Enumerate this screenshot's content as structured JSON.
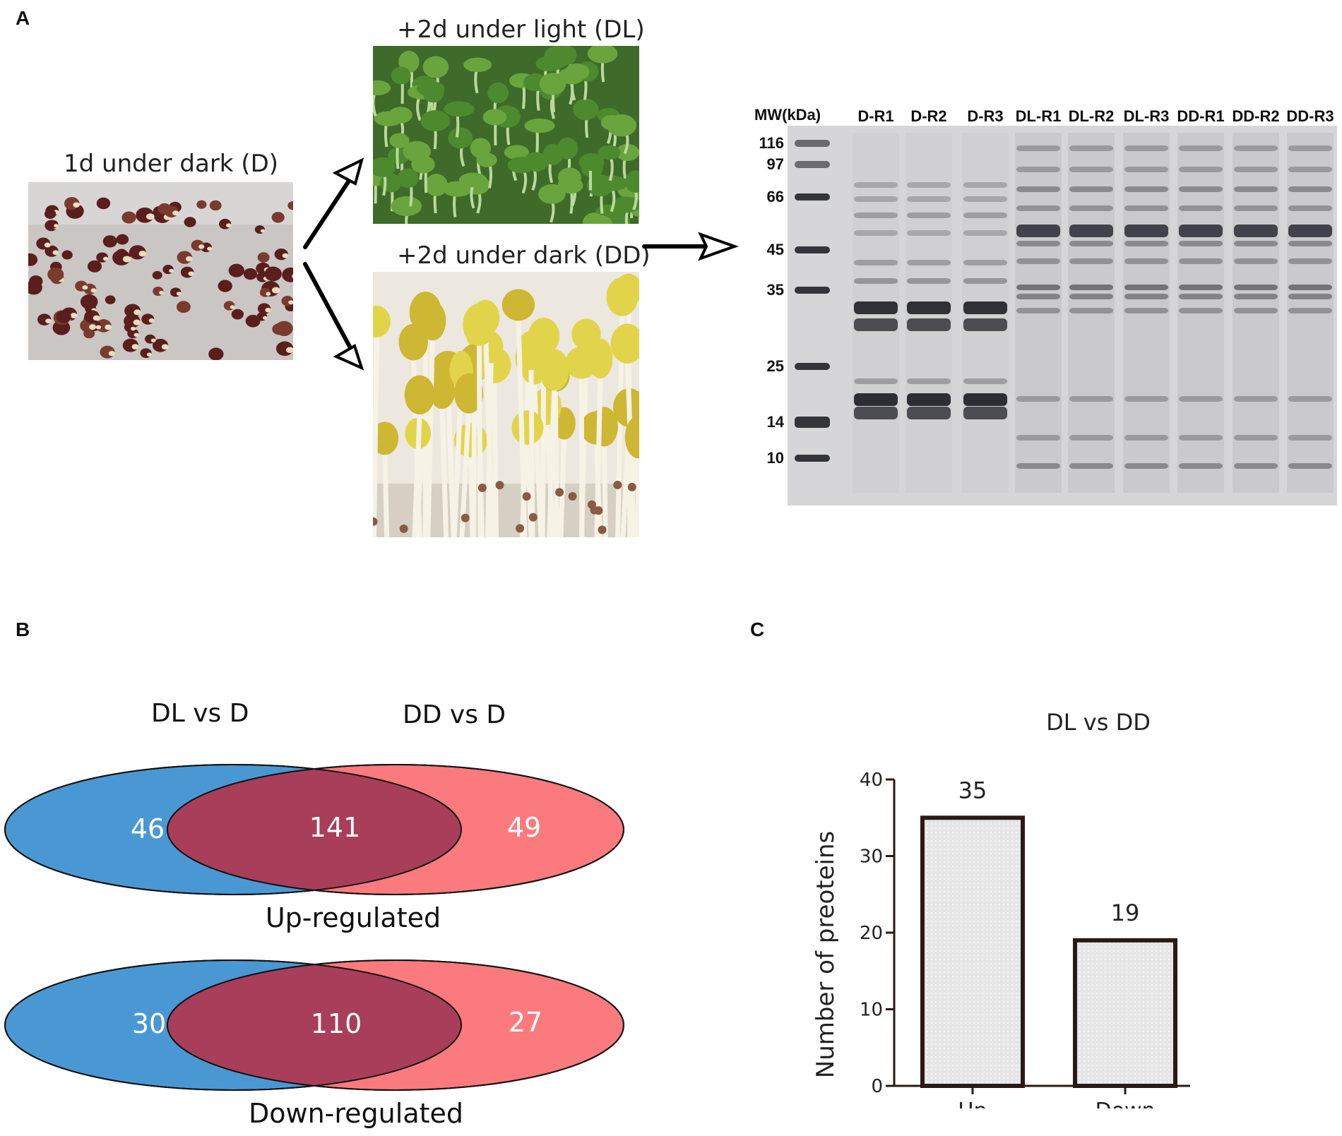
{
  "panels": {
    "a": "A",
    "b": "B",
    "c": "C"
  },
  "panel_a": {
    "caption_d": "1d under dark (D)",
    "caption_dl": "+2d under light (DL)",
    "caption_dd": "+2d under dark (DD)",
    "gel": {
      "mw_header": "MW(kDa)",
      "mw_markers": [
        "116",
        "97",
        "66",
        "45",
        "35",
        "25",
        "14",
        "10"
      ],
      "lanes": [
        "D-R1",
        "D-R2",
        "D-R3",
        "DL-R1",
        "DL-R2",
        "DL-R3",
        "DD-R1",
        "DD-R2",
        "DD-R3"
      ]
    }
  },
  "panel_b": {
    "left_title": "DL vs D",
    "right_title": "DD vs D",
    "up": {
      "caption": "Up-regulated",
      "left": "46",
      "overlap": "141",
      "right": "49"
    },
    "down": {
      "caption": "Down-regulated",
      "left": "30",
      "overlap": "110",
      "right": "27"
    },
    "colors": {
      "left": "#4a98d3",
      "right": "#fb7a7d",
      "overlap": "#a93e5b"
    }
  },
  "chart_data": {
    "type": "bar",
    "title": "DL vs DD",
    "categories": [
      "Up",
      "Down"
    ],
    "values": [
      35,
      19
    ],
    "data_labels": [
      "35",
      "19"
    ],
    "ylabel": "Number of preoteins",
    "xlabel": "",
    "ylim": [
      0,
      40
    ],
    "yticks": [
      "0",
      "10",
      "20",
      "30",
      "40"
    ],
    "bar_fill": "#e6e6e6",
    "bar_edge": "#2a1a16",
    "grid": false
  }
}
